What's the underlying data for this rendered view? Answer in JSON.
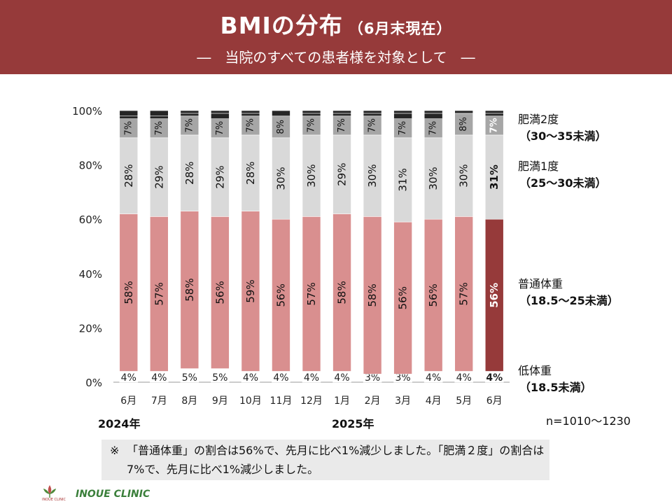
{
  "header": {
    "title": "BMIの分布",
    "title_note": "（6月末現在）",
    "subtitle": "―　当院のすべての患者様を対象として　―"
  },
  "colors": {
    "header_bg": "#963a3a",
    "normal": "#d98f8f",
    "normal_highlight": "#963a3a",
    "obese1": "#d9d9d9",
    "obese2": "#a6a6a6",
    "obese3": "#262626",
    "underweight": "#ffffff"
  },
  "legend": [
    {
      "label": "肥満2度",
      "range": "（30〜35未満）"
    },
    {
      "label": "肥満1度",
      "range": "（25〜30未満）"
    },
    {
      "label": "普通体重",
      "range": "（18.5〜25未満）"
    },
    {
      "label": "低体重",
      "range": "（18.5未満）"
    }
  ],
  "years": {
    "first": "2024年",
    "second": "2025年"
  },
  "n_count": "n=1010〜1230",
  "note": {
    "mark": "※",
    "text": "「普通体重」の割合は56%で、先月に比べ1%減少しました。「肥満２度」の割合は7%で、先月に比べ1%減少しました。"
  },
  "footer": {
    "clinic": "INOUE CLINIC",
    "logo_text": "INOUE CLINIC"
  },
  "chart_data": {
    "type": "bar",
    "stacked": true,
    "percent": true,
    "categories": [
      "6月",
      "7月",
      "8月",
      "9月",
      "10月",
      "11月",
      "12月",
      "1月",
      "2月",
      "3月",
      "4月",
      "5月",
      "6月"
    ],
    "ylim": [
      0,
      100
    ],
    "yticks": [
      "0%",
      "20%",
      "40%",
      "60%",
      "80%",
      "100%"
    ],
    "highlight_index": 12,
    "series": [
      {
        "name": "低体重",
        "values": [
          4,
          4,
          5,
          5,
          4,
          4,
          4,
          4,
          3,
          3,
          4,
          4,
          4
        ],
        "labels": [
          "4%",
          "4%",
          "5%",
          "5%",
          "4%",
          "4%",
          "4%",
          "4%",
          "3%",
          "3%",
          "4%",
          "4%",
          "4%"
        ]
      },
      {
        "name": "普通体重",
        "values": [
          58,
          57,
          58,
          56,
          59,
          56,
          57,
          58,
          58,
          56,
          56,
          57,
          56
        ],
        "labels": [
          "58%",
          "57%",
          "58%",
          "56%",
          "59%",
          "56%",
          "57%",
          "58%",
          "58%",
          "56%",
          "56%",
          "57%",
          "56%"
        ]
      },
      {
        "name": "肥満1度",
        "values": [
          28,
          29,
          28,
          29,
          28,
          30,
          30,
          29,
          30,
          31,
          30,
          30,
          31
        ],
        "labels": [
          "28%",
          "29%",
          "28%",
          "29%",
          "28%",
          "30%",
          "30%",
          "29%",
          "30%",
          "31%",
          "30%",
          "30%",
          "31%"
        ]
      },
      {
        "name": "肥満2度",
        "values": [
          7,
          7,
          7,
          7,
          7,
          8,
          7,
          7,
          7,
          7,
          7,
          8,
          7
        ],
        "labels": [
          "7%",
          "7%",
          "7%",
          "7%",
          "7%",
          "8%",
          "7%",
          "7%",
          "7%",
          "7%",
          "7%",
          "8%",
          "7%"
        ]
      },
      {
        "name": "",
        "values": [
          1,
          1,
          1,
          2,
          1,
          2,
          1,
          1,
          1,
          2,
          2,
          1,
          1
        ],
        "labels": []
      },
      {
        "name": "",
        "values": [
          2,
          2,
          1,
          1,
          1,
          0,
          1,
          1,
          1,
          1,
          1,
          0,
          1
        ],
        "labels": []
      }
    ]
  }
}
